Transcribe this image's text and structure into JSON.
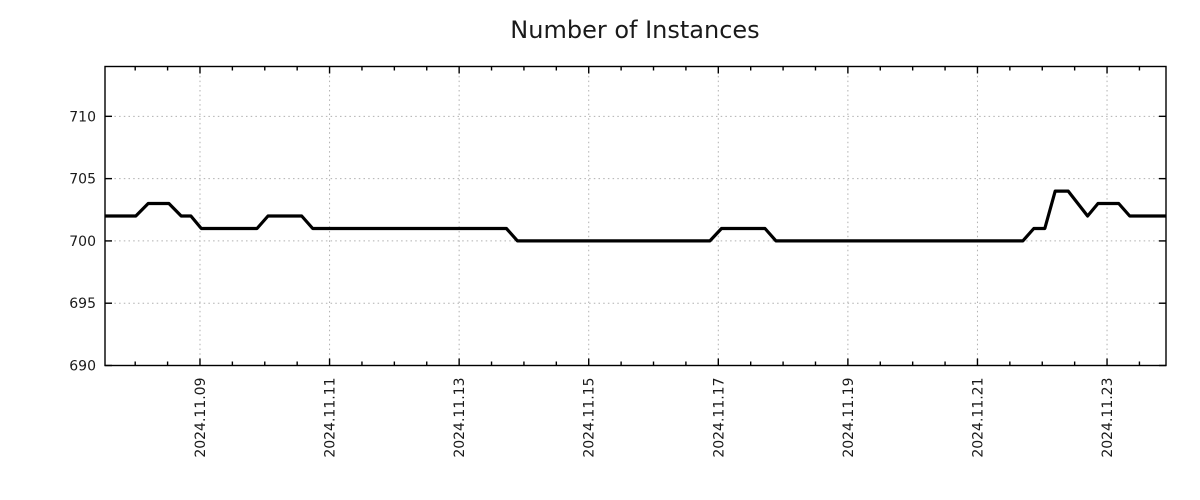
{
  "chart_data": {
    "type": "line",
    "title": "Number of Instances",
    "xlabel": "",
    "ylabel": "",
    "x_unit": "date, 2024 November (fractional day of month)",
    "xlim": [
      7.534,
      23.91
    ],
    "ylim": [
      690,
      714
    ],
    "x_major_ticks": [
      9,
      11,
      13,
      15,
      17,
      19,
      21,
      23
    ],
    "x_tick_labels": [
      "2024.11.09",
      "2024.11.11",
      "2024.11.13",
      "2024.11.15",
      "2024.11.17",
      "2024.11.19",
      "2024.11.21",
      "2024.11.23"
    ],
    "x_minor_tick_interval": 0.5,
    "y_ticks": [
      690,
      695,
      700,
      705,
      710
    ],
    "y_tick_labels": [
      "690",
      "695",
      "700",
      "705",
      "710"
    ],
    "grid": true,
    "legend_position": "none",
    "series": [
      {
        "name": "instances",
        "color": "#000000",
        "points": [
          [
            7.534,
            702
          ],
          [
            8.01,
            702
          ],
          [
            8.2,
            703
          ],
          [
            8.52,
            703
          ],
          [
            8.71,
            702
          ],
          [
            8.86,
            702
          ],
          [
            9.02,
            701
          ],
          [
            9.88,
            701
          ],
          [
            10.05,
            702
          ],
          [
            10.57,
            702
          ],
          [
            10.74,
            701
          ],
          [
            13.73,
            701
          ],
          [
            13.9,
            700
          ],
          [
            16.87,
            700
          ],
          [
            17.05,
            701
          ],
          [
            17.72,
            701
          ],
          [
            17.89,
            700
          ],
          [
            21.7,
            700
          ],
          [
            21.87,
            701
          ],
          [
            22.04,
            701
          ],
          [
            22.2,
            704
          ],
          [
            22.4,
            704
          ],
          [
            22.7,
            702
          ],
          [
            22.86,
            703
          ],
          [
            23.18,
            703
          ],
          [
            23.35,
            702
          ],
          [
            23.91,
            702
          ]
        ]
      }
    ],
    "colors": {
      "line": "#000000",
      "grid": "#b0b0b0",
      "border": "#000000",
      "text": "#1a1a1a",
      "background": "#ffffff"
    }
  }
}
